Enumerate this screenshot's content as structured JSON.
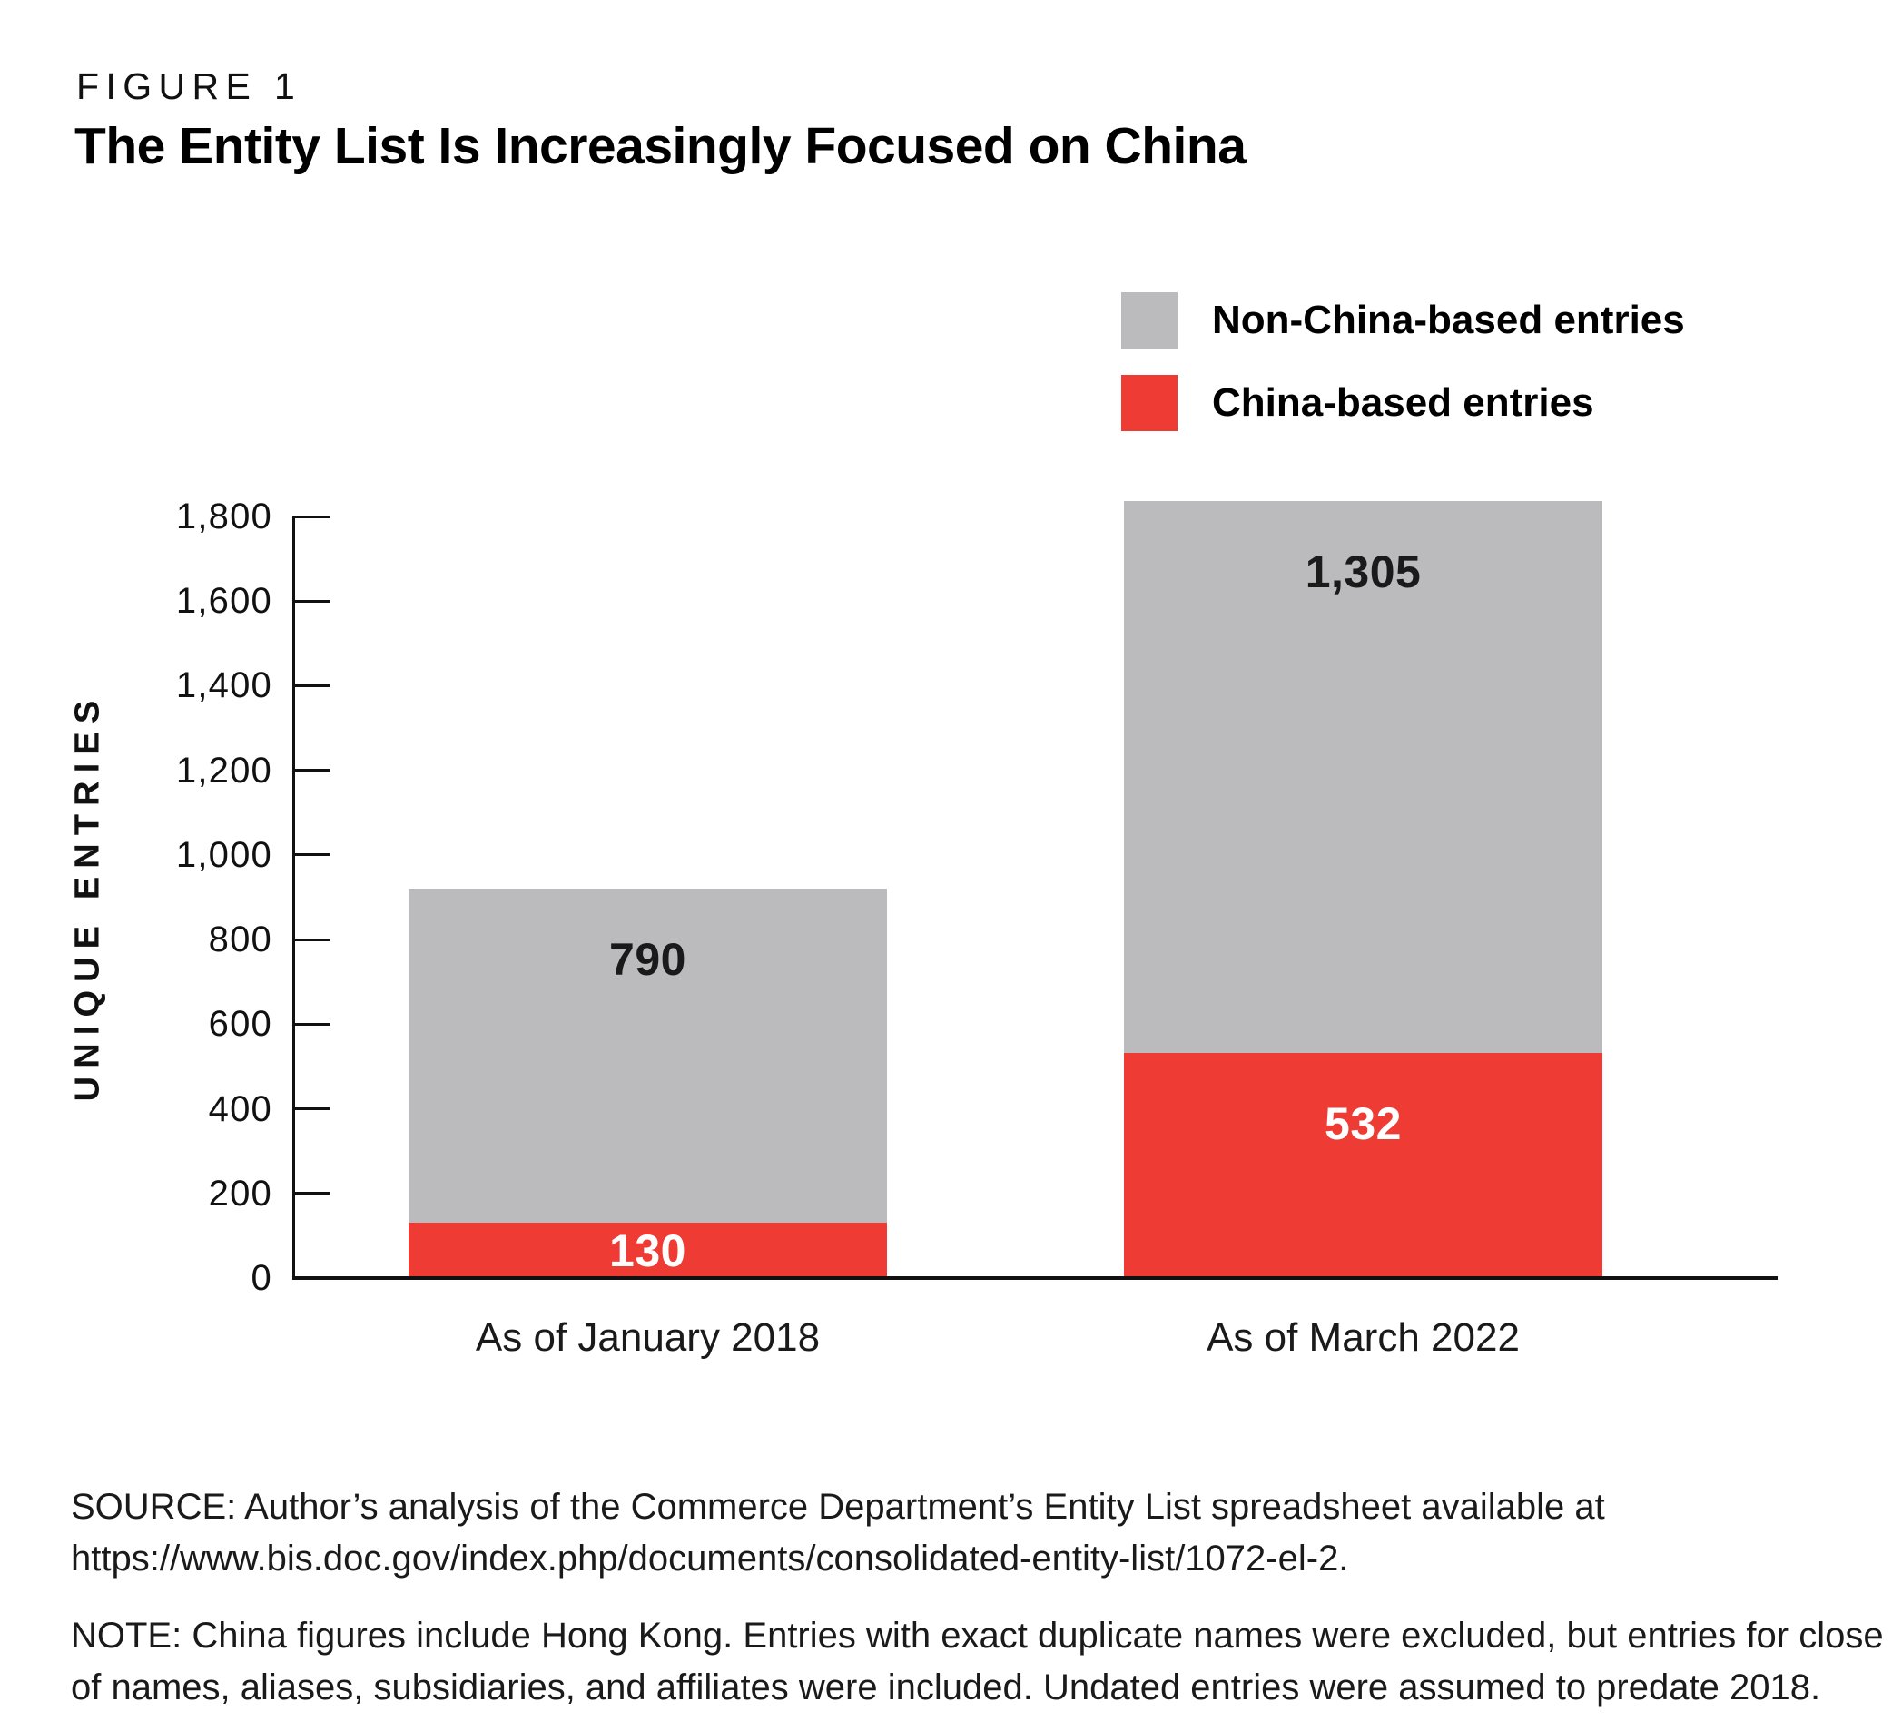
{
  "figure_label": "FIGURE 1",
  "title": "The Entity List Is Increasingly Focused on China",
  "legend": [
    {
      "label": "Non-China-based entries",
      "color": "#BBBBBD"
    },
    {
      "label": "China-based entries",
      "color": "#EE3B33"
    }
  ],
  "chart_data": {
    "type": "bar",
    "stacked": true,
    "grid": false,
    "legend_position": "top-right",
    "categories": [
      "As of January 2018",
      "As of March 2022"
    ],
    "series": [
      {
        "key": "china",
        "name": "China-based entries",
        "color": "#EE3B33",
        "values": [
          130,
          532
        ],
        "labels": [
          "130",
          "532"
        ],
        "label_color": "#ffffff"
      },
      {
        "key": "non-china",
        "name": "Non-China-based entries",
        "color": "#BBBBBD",
        "values": [
          790,
          1305
        ],
        "labels": [
          "790",
          "1,305"
        ],
        "label_color": "#1a1a1a"
      }
    ],
    "ylabel": "UNIQUE ENTRIES",
    "ylim": [
      0,
      1800
    ],
    "ytick_step": 200,
    "yticks": [
      "1,800",
      "1,600",
      "1,400",
      "1,200",
      "1,000",
      "800",
      "600",
      "400",
      "200",
      "0"
    ]
  },
  "source": {
    "line1": "SOURCE: Author’s analysis of the Commerce Department’s Entity List spreadsheet available at",
    "line2": "https://www.bis.doc.gov/index.php/documents/consolidated-entity-list/1072-el-2."
  },
  "note": {
    "line1": "NOTE: China figures include Hong Kong. Entries with exact duplicate names were excluded, but entries for close variations",
    "line2": "of names, aliases, subsidiaries, and affiliates were included. Undated entries were assumed to predate 2018."
  }
}
